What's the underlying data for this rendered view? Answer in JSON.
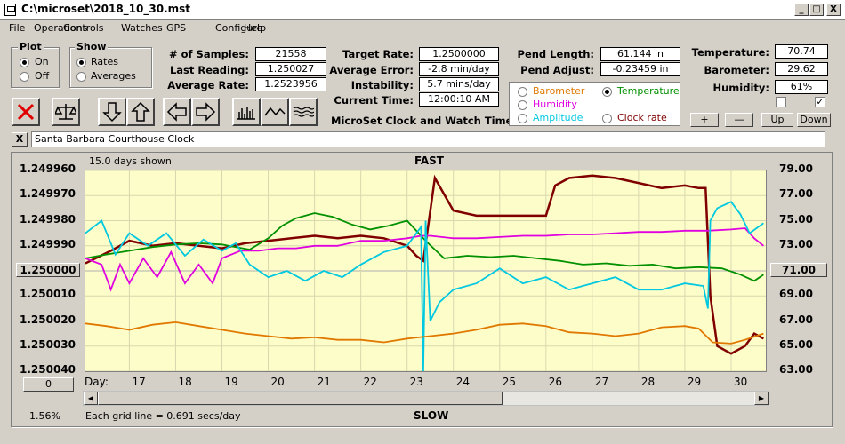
{
  "window": {
    "title": "C:\\microset\\2018_10_30.mst",
    "minimize": "_",
    "restore": "□",
    "close": "X"
  },
  "menu": [
    "File",
    "Operations",
    "Controls",
    "Watches",
    "GPS",
    "Configure",
    "Help"
  ],
  "plot_group": {
    "label": "Plot",
    "on": "On",
    "off": "Off",
    "selected": "On"
  },
  "show_group": {
    "label": "Show",
    "rates": "Rates",
    "averages": "Averages",
    "selected": "Rates"
  },
  "stats": {
    "samples_label": "# of Samples:",
    "samples": "21558",
    "last_reading_label": "Last Reading:",
    "last_reading": "1.250027",
    "average_rate_label": "Average Rate:",
    "average_rate": "1.2523956"
  },
  "rates": {
    "target_rate_label": "Target Rate:",
    "target_rate": "1.2500000",
    "average_error_label": "Average Error:",
    "average_error": "-2.8 min/day",
    "instability_label": "Instability:",
    "instability": "5.7 mins/day",
    "current_time_label": "Current Time:",
    "current_time": "12:00:10 AM"
  },
  "timer_title": "MicroSet Clock and Watch Timer",
  "pendulum": {
    "length_label": "Pend Length:",
    "length": "61.144 in",
    "adjust_label": "Pend Adjust:",
    "adjust": "-0.23459 in"
  },
  "channels": [
    {
      "name": "Barometer",
      "color": "#e07800",
      "selected": false
    },
    {
      "name": "Temperature",
      "color": "#009000",
      "selected": true
    },
    {
      "name": "Humidity",
      "color": "#e000e0",
      "selected": false
    },
    {
      "name": "Amplitude",
      "color": "#00c8e0",
      "selected": false
    },
    {
      "name": "Clock rate",
      "color": "#800000",
      "selected": false
    }
  ],
  "environment": {
    "temperature_label": "Temperature:",
    "temperature": "70.74",
    "barometer_label": "Barometer:",
    "barometer": "29.62",
    "humidity_label": "Humidity:",
    "humidity": "61%",
    "checkbox1_checked": false,
    "checkbox2_checked": true
  },
  "adjust_buttons": {
    "plus": "+",
    "minus": "—",
    "up": "Up",
    "down": "Down"
  },
  "toolbar_icons": [
    "stop-icon",
    "scale-icon",
    "arrow-down-icon",
    "arrow-up-icon",
    "arrow-left-icon",
    "arrow-right-icon",
    "bars-icon",
    "wave-icon",
    "zigzag-icon"
  ],
  "close_x": "X",
  "clock_name": "Santa Barbara Courthouse Clock",
  "chart_header": {
    "days_shown": "15.0 days shown",
    "fast": "FAST",
    "slow": "SLOW",
    "grid_note": "Each grid line = 0.691 secs/day",
    "percent": "1.56%",
    "left_zero_btn": "0",
    "center_btn_left": "1.250000",
    "center_btn_right": "71.00",
    "day_prefix": "Day:"
  },
  "chart_data": {
    "type": "line",
    "left_axis": {
      "ticks": [
        "1.249960",
        "1.249970",
        "1.249980",
        "1.249990",
        "1.250000",
        "1.250010",
        "1.250020",
        "1.250030",
        "1.250040"
      ],
      "range": [
        1.24996,
        1.25004
      ],
      "inverted": true
    },
    "right_axis": {
      "ticks": [
        "79.00",
        "77.00",
        "75.00",
        "73.00",
        "71.00",
        "69.00",
        "67.00",
        "65.00",
        "63.00"
      ],
      "range": [
        63,
        79
      ]
    },
    "x_ticks": [
      "17",
      "18",
      "19",
      "20",
      "21",
      "22",
      "23",
      "24",
      "25",
      "26",
      "27",
      "28",
      "29",
      "30"
    ],
    "x_range": [
      16.05,
      30.75
    ],
    "series": [
      {
        "name": "Clock rate",
        "color": "#800000",
        "axis": "left",
        "x": [
          16.05,
          16.6,
          17.0,
          17.5,
          18.0,
          18.5,
          19.0,
          19.5,
          20.0,
          20.5,
          21.0,
          21.5,
          22.0,
          22.5,
          23.0,
          23.2,
          23.35,
          23.6,
          24.0,
          24.5,
          25.0,
          25.5,
          26.0,
          26.2,
          26.5,
          27.0,
          27.5,
          28.0,
          28.5,
          29.0,
          29.3,
          29.45,
          29.55,
          29.7,
          30.0,
          30.3,
          30.5,
          30.7
        ],
        "y": [
          1.249997,
          1.249992,
          1.249988,
          1.24999,
          1.249989,
          1.24999,
          1.249991,
          1.249989,
          1.249988,
          1.249987,
          1.249986,
          1.249987,
          1.249986,
          1.249987,
          1.24999,
          1.249994,
          1.249996,
          1.249963,
          1.249976,
          1.249978,
          1.249978,
          1.249978,
          1.249978,
          1.249966,
          1.249963,
          1.249962,
          1.249963,
          1.249965,
          1.249967,
          1.249966,
          1.249967,
          1.249967,
          1.25001,
          1.25003,
          1.250033,
          1.25003,
          1.250025,
          1.250027
        ]
      },
      {
        "name": "Temperature",
        "color": "#009000",
        "axis": "right",
        "x": [
          16.05,
          16.5,
          17.0,
          17.5,
          18.0,
          18.5,
          19.0,
          19.3,
          19.6,
          20.0,
          20.3,
          20.6,
          21.0,
          21.4,
          21.8,
          22.2,
          22.6,
          23.0,
          23.4,
          23.8,
          24.3,
          24.8,
          25.3,
          25.8,
          26.3,
          26.8,
          27.3,
          27.8,
          28.3,
          28.8,
          29.3,
          29.8,
          30.2,
          30.5,
          30.7
        ],
        "y": [
          72.0,
          72.3,
          72.6,
          72.9,
          73.1,
          73.2,
          73.1,
          72.9,
          72.7,
          73.6,
          74.6,
          75.2,
          75.6,
          75.3,
          74.7,
          74.3,
          74.6,
          75.0,
          73.4,
          72.0,
          72.2,
          72.1,
          72.2,
          72.0,
          71.8,
          71.5,
          71.6,
          71.4,
          71.5,
          71.2,
          71.3,
          71.2,
          70.7,
          70.2,
          70.7
        ]
      },
      {
        "name": "Humidity",
        "color": "#e000e0",
        "axis": "right",
        "x": [
          16.05,
          16.4,
          16.6,
          16.8,
          17.0,
          17.3,
          17.6,
          17.9,
          18.2,
          18.5,
          18.8,
          19.0,
          19.4,
          19.8,
          20.2,
          20.6,
          21.0,
          21.5,
          22.0,
          22.5,
          23.0,
          23.3,
          23.5,
          24.0,
          24.5,
          25.0,
          25.5,
          26.0,
          26.5,
          27.0,
          27.5,
          28.0,
          28.5,
          29.0,
          29.5,
          30.0,
          30.3,
          30.5,
          30.7
        ],
        "y": [
          72.0,
          71.5,
          69.5,
          71.5,
          70.0,
          72.0,
          70.5,
          72.5,
          70.0,
          71.5,
          70.0,
          72.0,
          72.6,
          72.6,
          72.8,
          72.8,
          73.0,
          73.0,
          73.4,
          73.4,
          73.6,
          73.8,
          73.8,
          73.6,
          73.6,
          73.7,
          73.8,
          73.8,
          73.9,
          73.9,
          74.0,
          74.1,
          74.1,
          74.2,
          74.2,
          74.3,
          74.4,
          73.6,
          73.0
        ]
      },
      {
        "name": "Amplitude",
        "color": "#00c8e0",
        "axis": "right",
        "x": [
          16.05,
          16.4,
          16.7,
          17.0,
          17.4,
          17.8,
          18.2,
          18.6,
          19.0,
          19.3,
          19.6,
          20.0,
          20.4,
          20.8,
          21.2,
          21.6,
          22.0,
          22.5,
          23.0,
          23.3,
          23.35,
          23.4,
          23.5,
          23.7,
          24.0,
          24.5,
          25.0,
          25.5,
          26.0,
          26.5,
          27.0,
          27.5,
          28.0,
          28.5,
          29.0,
          29.4,
          29.5,
          29.55,
          29.7,
          30.0,
          30.2,
          30.4,
          30.7
        ],
        "y": [
          74.0,
          75.0,
          72.3,
          74.0,
          73.0,
          74.0,
          72.2,
          73.5,
          72.6,
          73.2,
          71.5,
          70.5,
          71.0,
          70.2,
          71.0,
          70.5,
          71.5,
          72.5,
          73.0,
          74.5,
          63.0,
          75.0,
          67.0,
          68.5,
          69.5,
          70.0,
          71.2,
          70.0,
          70.5,
          69.5,
          70.0,
          70.5,
          69.5,
          69.5,
          70.0,
          69.8,
          68.0,
          75.0,
          76.0,
          76.5,
          75.5,
          74.0,
          74.8
        ]
      },
      {
        "name": "Barometer",
        "color": "#e07800",
        "axis": "right",
        "x": [
          16.05,
          16.5,
          17.0,
          17.5,
          18.0,
          18.5,
          19.0,
          19.5,
          20.0,
          20.5,
          21.0,
          21.5,
          22.0,
          22.5,
          23.0,
          23.5,
          24.0,
          24.5,
          25.0,
          25.5,
          26.0,
          26.5,
          27.0,
          27.5,
          28.0,
          28.5,
          29.0,
          29.3,
          29.6,
          30.0,
          30.3,
          30.7
        ],
        "y": [
          66.8,
          66.6,
          66.3,
          66.7,
          66.9,
          66.6,
          66.3,
          66.0,
          65.8,
          65.6,
          65.7,
          65.5,
          65.5,
          65.3,
          65.6,
          65.8,
          66.0,
          66.3,
          66.7,
          66.8,
          66.6,
          66.1,
          66.0,
          65.8,
          66.0,
          66.5,
          66.6,
          66.4,
          65.3,
          65.2,
          65.5,
          66.0
        ]
      }
    ]
  }
}
